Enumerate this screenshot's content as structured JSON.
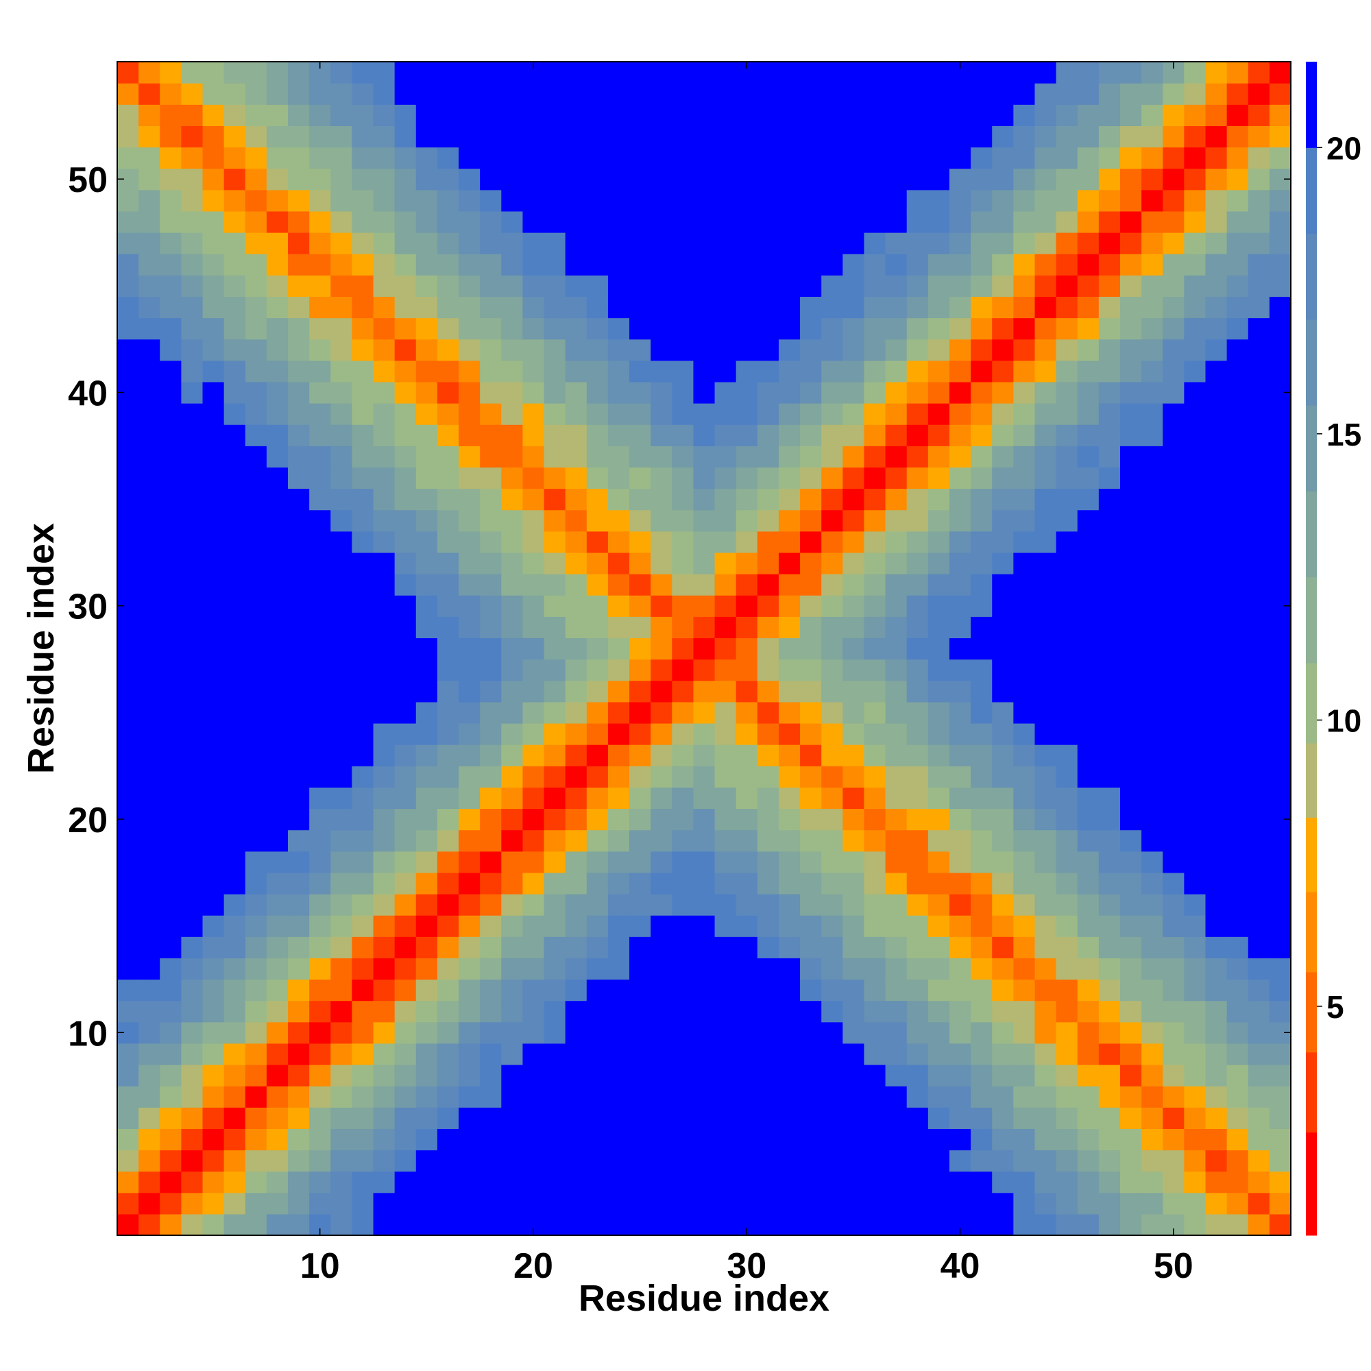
{
  "chart_data": {
    "type": "heatmap",
    "title": "",
    "xlabel": "Residue index",
    "ylabel": "Residue index",
    "n_residues": 55,
    "x_range": [
      0.5,
      55.5
    ],
    "y_range": [
      0.5,
      55.5
    ],
    "x_ticks": [
      10,
      20,
      30,
      40,
      50
    ],
    "y_ticks": [
      10,
      20,
      30,
      40,
      50
    ],
    "colorbar": {
      "ticks": [
        5,
        10,
        15,
        20
      ],
      "range": [
        1,
        21.5
      ],
      "levels": [
        {
          "upper": 2.8,
          "color": "#ff0000"
        },
        {
          "upper": 4.2,
          "color": "#ff3c00"
        },
        {
          "upper": 5.6,
          "color": "#ff6a00"
        },
        {
          "upper": 7.0,
          "color": "#ff8c00"
        },
        {
          "upper": 8.3,
          "color": "#ffa800"
        },
        {
          "upper": 9.6,
          "color": "#b4b872"
        },
        {
          "upper": 11.0,
          "color": "#9cba88"
        },
        {
          "upper": 12.5,
          "color": "#8eb094"
        },
        {
          "upper": 14.0,
          "color": "#80a69e"
        },
        {
          "upper": 15.5,
          "color": "#729aa8"
        },
        {
          "upper": 17.0,
          "color": "#6690b4"
        },
        {
          "upper": 18.5,
          "color": "#5c88bc"
        },
        {
          "upper": 20.0,
          "color": "#5080c4"
        },
        {
          "upper": 21.5,
          "color": "#0000ff"
        }
      ]
    },
    "model": {
      "description_free": true,
      "main_diagonal_distance": [
        0,
        3.8,
        6.0,
        8.5,
        10.5,
        12.5,
        14.0,
        15.5,
        17.0,
        18.0,
        19.0,
        20.0
      ],
      "antidiagonal_center": 56,
      "antidiagonal_distance": [
        4.5,
        6.5,
        8.5,
        10.0,
        11.5,
        13.0,
        14.5,
        16.0,
        17.5,
        19.0,
        20.5
      ],
      "cutoff": 20.0
    }
  }
}
